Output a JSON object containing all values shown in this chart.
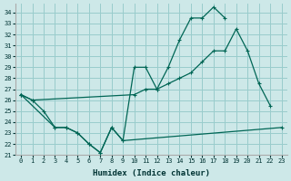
{
  "xlabel": "Humidex (Indice chaleur)",
  "background_color": "#cde8e8",
  "grid_color": "#99cccc",
  "line_color": "#006655",
  "xlim": [
    -0.5,
    23.5
  ],
  "ylim": [
    21,
    34.8
  ],
  "yticks": [
    21,
    22,
    23,
    24,
    25,
    26,
    27,
    28,
    29,
    30,
    31,
    32,
    33,
    34
  ],
  "xticks": [
    0,
    1,
    2,
    3,
    4,
    5,
    6,
    7,
    8,
    9,
    10,
    11,
    12,
    13,
    14,
    15,
    16,
    17,
    18,
    19,
    20,
    21,
    22,
    23
  ],
  "line1_x": [
    0,
    1,
    2,
    3,
    4,
    5,
    6,
    7,
    8,
    9,
    10,
    11,
    12,
    13,
    14,
    15,
    16,
    17,
    18
  ],
  "line1_y": [
    26.5,
    26.0,
    25.0,
    23.5,
    23.5,
    23.0,
    22.0,
    21.2,
    23.5,
    22.3,
    29.0,
    29.0,
    27.0,
    29.0,
    31.5,
    33.5,
    33.5,
    34.5,
    33.5
  ],
  "line2_x": [
    0,
    1,
    10,
    11,
    12,
    13,
    14,
    15,
    16,
    17,
    18,
    19,
    20,
    21,
    22
  ],
  "line2_y": [
    26.5,
    26.0,
    26.5,
    27.0,
    27.0,
    27.5,
    28.0,
    28.5,
    29.5,
    30.5,
    30.5,
    32.5,
    30.5,
    27.5,
    25.5
  ],
  "line3_x": [
    0,
    3,
    4,
    5,
    6,
    7,
    8,
    9,
    23
  ],
  "line3_y": [
    26.5,
    23.5,
    23.5,
    23.0,
    22.0,
    21.2,
    23.5,
    22.3,
    23.5
  ]
}
